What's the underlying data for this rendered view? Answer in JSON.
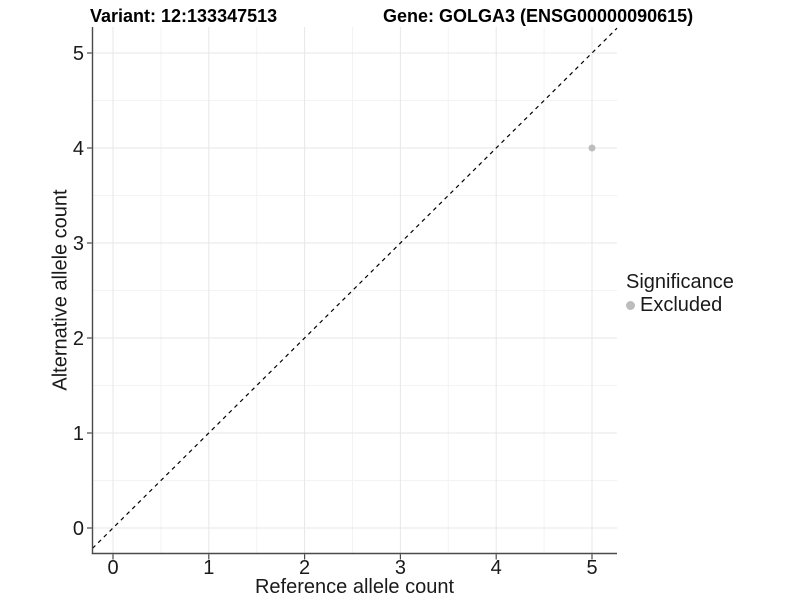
{
  "titles": {
    "variant": "Variant: 12:133347513",
    "gene": "Gene: GOLGA3 (ENSG00000090615)"
  },
  "chart_data": {
    "type": "scatter",
    "title_left": "Variant: 12:133347513",
    "title_right": "Gene: GOLGA3 (ENSG00000090615)",
    "xlabel": "Reference allele count",
    "ylabel": "Alternative allele count",
    "x_ticks": [
      0,
      1,
      2,
      3,
      4,
      5
    ],
    "y_ticks": [
      0,
      1,
      2,
      3,
      4,
      5
    ],
    "xlim": [
      0,
      5
    ],
    "ylim": [
      0,
      5
    ],
    "grid": "major+minor",
    "series": [
      {
        "name": "Excluded",
        "color": "#bdbdbd",
        "points": [
          {
            "x": 5,
            "y": 4
          }
        ]
      }
    ],
    "reference_line": {
      "equation": "y = x",
      "slope": 1,
      "intercept": 0,
      "style": "dashed",
      "color": "#000000"
    },
    "legend": {
      "title": "Significance",
      "position": "right",
      "entries": [
        {
          "label": "Excluded",
          "color": "#bdbdbd"
        }
      ]
    }
  },
  "colors": {
    "background": "#ffffff",
    "major_grid": "#e7e7e7",
    "minor_grid": "#f3f3f3",
    "axis_line": "#4a4a4a",
    "tick_label": "#1a1a1a",
    "reference_line": "#000000",
    "point": "#bdbdbd"
  }
}
